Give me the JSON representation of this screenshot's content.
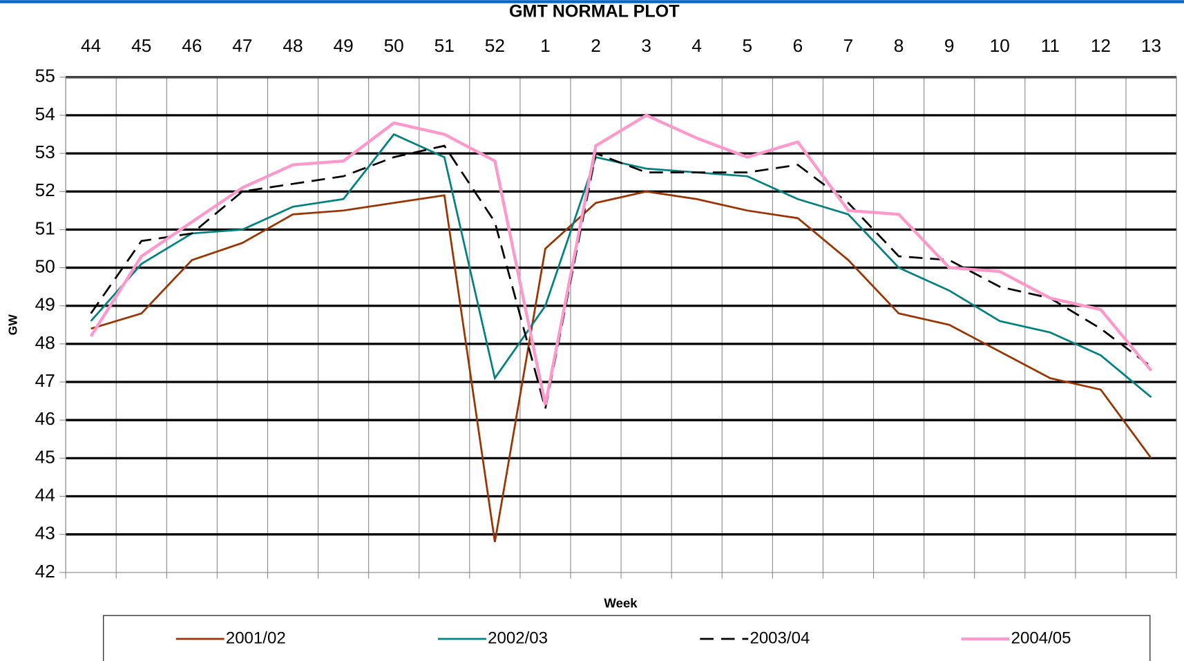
{
  "chart_data": {
    "type": "line",
    "title": "GMT NORMAL PLOT",
    "x_label": "Week",
    "y_label": "GW",
    "categories": [
      "44",
      "45",
      "46",
      "47",
      "48",
      "49",
      "50",
      "51",
      "52",
      "1",
      "2",
      "3",
      "4",
      "5",
      "6",
      "7",
      "8",
      "9",
      "10",
      "11",
      "12",
      "13"
    ],
    "series": [
      {
        "name": "2001/02",
        "color": "#993300",
        "line_style": "solid",
        "line_width": 2.5,
        "values": [
          48.4,
          48.8,
          50.2,
          50.65,
          51.4,
          51.5,
          51.7,
          51.9,
          42.8,
          50.5,
          51.7,
          52.0,
          51.8,
          51.5,
          51.3,
          50.2,
          48.8,
          48.5,
          47.8,
          47.1,
          46.8,
          45.0
        ]
      },
      {
        "name": "2002/03",
        "color": "#008080",
        "line_style": "solid",
        "line_width": 2.5,
        "values": [
          48.6,
          50.1,
          50.9,
          51.0,
          51.6,
          51.8,
          53.5,
          52.9,
          47.1,
          49.0,
          52.9,
          52.6,
          52.5,
          52.4,
          51.8,
          51.4,
          50.0,
          49.4,
          48.6,
          48.3,
          47.7,
          46.6
        ]
      },
      {
        "name": "2003/04",
        "color": "#000000",
        "line_style": "dashed",
        "line_width": 2.5,
        "values": [
          48.8,
          50.7,
          50.9,
          52.0,
          52.2,
          52.4,
          52.9,
          53.2,
          51.2,
          46.3,
          53.0,
          52.5,
          52.5,
          52.5,
          52.7,
          51.7,
          50.3,
          50.2,
          49.5,
          49.2,
          48.4,
          47.4
        ]
      },
      {
        "name": "2004/05",
        "color": "#ff99cc",
        "line_style": "solid",
        "line_width": 4,
        "values": [
          48.2,
          50.3,
          51.2,
          52.1,
          52.7,
          52.8,
          53.8,
          53.5,
          52.8,
          46.4,
          53.2,
          54.0,
          53.4,
          52.9,
          53.3,
          51.5,
          51.4,
          50.0,
          49.9,
          49.2,
          48.9,
          47.3
        ]
      }
    ],
    "ylim": [
      42,
      55
    ],
    "yticks": [
      42,
      43,
      44,
      45,
      46,
      47,
      48,
      49,
      50,
      51,
      52,
      53,
      54,
      55
    ],
    "grid": true,
    "legend": "bottom"
  }
}
